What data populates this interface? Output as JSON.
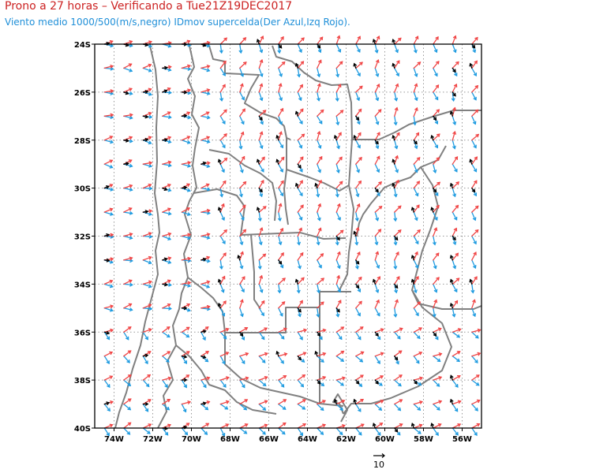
{
  "title": "Prono a 27 horas – Verificando a Tue21Z19DEC2017",
  "subtitle": "Viento medio 1000/500(m/s,negro) IDmov supercelda(Der Azul,Izq Rojo).",
  "lon_labels": [
    "74W",
    "72W",
    "70W",
    "68W",
    "66W",
    "64W",
    "62W",
    "60W",
    "58W",
    "56W"
  ],
  "lat_labels": [
    "24S",
    "26S",
    "28S",
    "30S",
    "32S",
    "34S",
    "36S",
    "38S",
    "40S"
  ],
  "reference_vector": {
    "value": "10"
  },
  "colors": {
    "mean_wind": "#000000",
    "right_mover": "#1e9be0",
    "left_mover": "#f04545",
    "boundaries": "#808080",
    "grid": "#999999",
    "title": "#cc2222",
    "subtitle": "#1f8fd8"
  },
  "map": {
    "extent": {
      "lon_min": -75,
      "lon_max": -55,
      "lat_min": -40,
      "lat_max": -24
    },
    "grid_spacing_deg": 2,
    "vector_spacing_deg": 1
  }
}
